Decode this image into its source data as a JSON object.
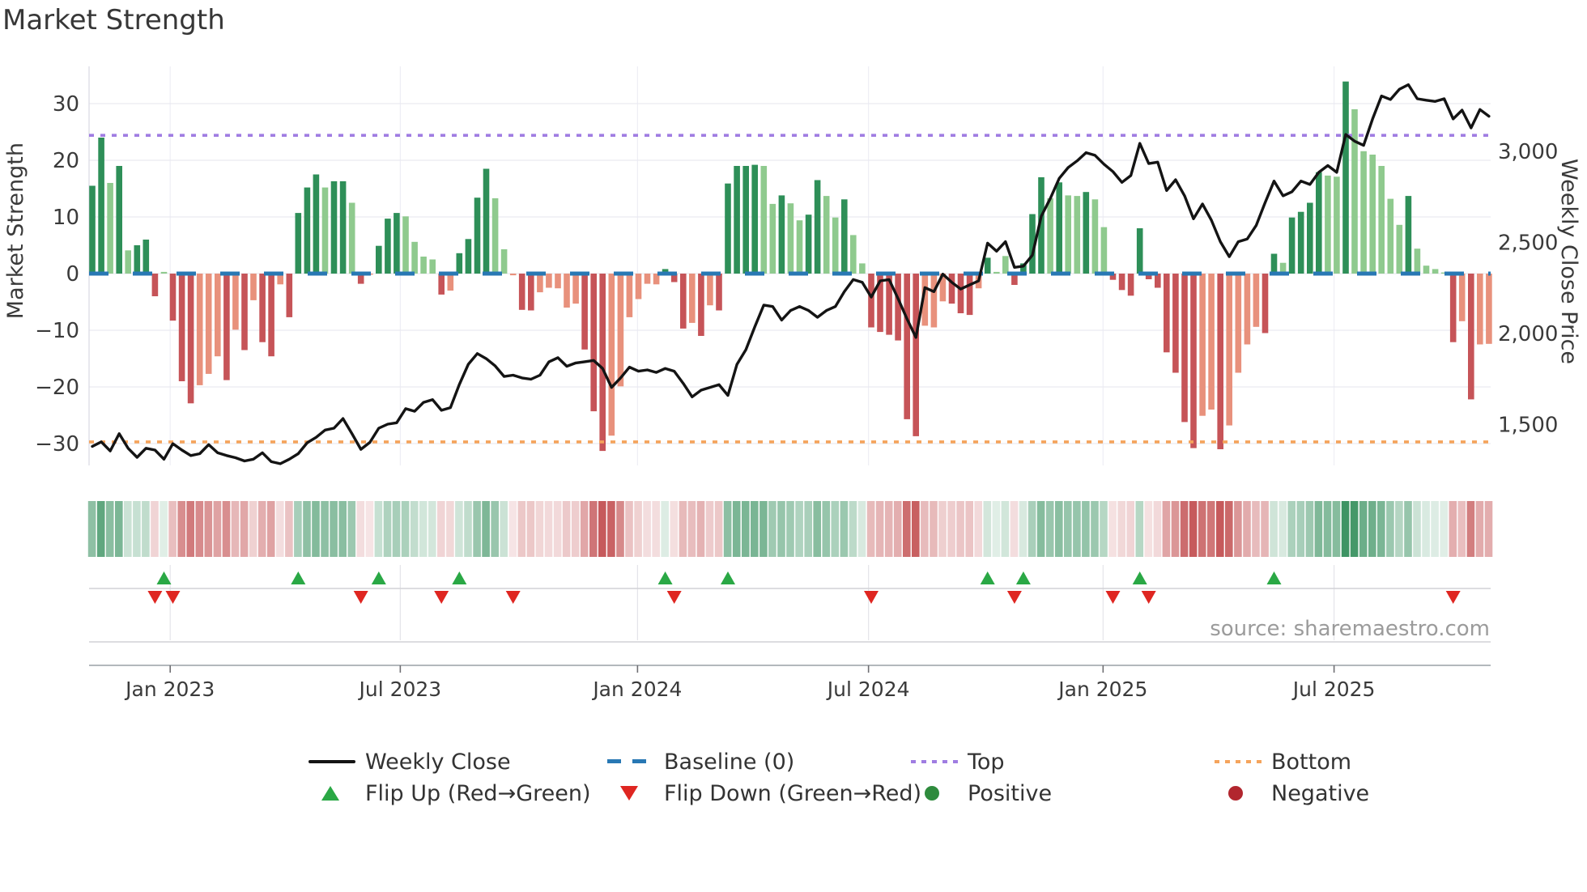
{
  "title": "Market Strength",
  "source_note": "source: sharemaestro.com",
  "chart_data": {
    "type": "bar",
    "title": "Market Strength",
    "subtitle": "",
    "left_axis": {
      "label": "Market Strength",
      "tick_values": [
        30,
        20,
        10,
        0,
        -10,
        -20,
        -30
      ],
      "tick_labels": [
        "30",
        "20",
        "10",
        "0",
        "−10",
        "−20",
        "−30"
      ],
      "ylim": [
        -33.9,
        36.6
      ],
      "grid": true
    },
    "right_axis": {
      "label": "Weekly Close Price",
      "tick_values": [
        3000,
        2500,
        2000,
        1500
      ],
      "tick_labels": [
        "3,000",
        "2,500",
        "2,000",
        "1,500"
      ],
      "ylim": [
        1276,
        3467
      ]
    },
    "x_axis": {
      "tick_labels": [
        "Jan 2023",
        "Jul 2023",
        "Jan 2024",
        "Jul 2024",
        "Jan 2025",
        "Jul 2025"
      ],
      "tick_weeks": [
        8.7,
        34.4,
        60.9,
        86.7,
        112.9,
        138.7
      ]
    },
    "baseline_value": 0,
    "top_value": 24.4,
    "bottom_value": -29.7,
    "bars": {
      "values": [
        15.5,
        24,
        16,
        19,
        4.1,
        5,
        6,
        -4,
        0.3,
        -8.3,
        -19,
        -22.9,
        -19.7,
        -17.7,
        -14.6,
        -18.8,
        -9.9,
        -13.5,
        -4.7,
        -12.1,
        -14.6,
        -1.9,
        -7.7,
        10.7,
        15.2,
        17.5,
        15.2,
        16.3,
        16.3,
        12.5,
        -1.8,
        -0.2,
        4.9,
        9.7,
        10.7,
        10.1,
        5.6,
        3,
        2.5,
        -3.7,
        -3,
        3.6,
        6.1,
        13.4,
        18.5,
        13.3,
        4.3,
        -0.3,
        -6.4,
        -6.5,
        -3.3,
        -2.5,
        -2.6,
        -6,
        -5.3,
        -13.4,
        -24.3,
        -31.3,
        -28.6,
        -19.9,
        -7.7,
        -4.5,
        -1.8,
        -1.9,
        0.8,
        -1.5,
        -9.7,
        -8.7,
        -11,
        -5.6,
        -6.5,
        15.9,
        19,
        19,
        19.2,
        19,
        12.3,
        13.8,
        12.4,
        9.4,
        10.4,
        16.5,
        13.7,
        9.9,
        13.1,
        6.8,
        1.8,
        -9.5,
        -10.3,
        -10.8,
        -11.8,
        -25.7,
        -28.7,
        -9.2,
        -9.5,
        -4.9,
        -5.3,
        -7,
        -7.3,
        -2.6,
        2.8,
        0.3,
        3.1,
        -2,
        1.8,
        10.5,
        17,
        13.3,
        16.1,
        13.8,
        13.7,
        14.4,
        13.1,
        8.2,
        -1.1,
        -2.9,
        -3.9,
        8,
        -1,
        -2.5,
        -13.9,
        -17.5,
        -26.2,
        -30.8,
        -25.1,
        -24,
        -31,
        -26.8,
        -17.5,
        -12.5,
        -9.4,
        -10.5,
        3.5,
        1.9,
        9.9,
        10.9,
        12.5,
        17.9,
        17.3,
        17.1,
        33.9,
        29,
        21.6,
        21,
        19,
        13.2,
        8.6,
        13.7,
        4.4,
        1.4,
        0.8,
        0.2,
        -12.1,
        -8.4,
        -22.2,
        -12.5,
        -12.4
      ],
      "shades": [
        "dg",
        "dg",
        "lg",
        "dg",
        "lg",
        "dg",
        "dg",
        "dr",
        "lg",
        "dr",
        "dr",
        "dr",
        "sr",
        "sr",
        "sr",
        "dr",
        "sr",
        "dr",
        "sr",
        "dr",
        "dr",
        "sr",
        "dr",
        "dg",
        "dg",
        "dg",
        "lg",
        "dg",
        "dg",
        "lg",
        "dr",
        "sr",
        "dg",
        "dg",
        "dg",
        "lg",
        "lg",
        "lg",
        "lg",
        "dr",
        "sr",
        "dg",
        "dg",
        "dg",
        "dg",
        "lg",
        "lg",
        "sr",
        "dr",
        "dr",
        "sr",
        "sr",
        "sr",
        "sr",
        "sr",
        "dr",
        "dr",
        "dr",
        "sr",
        "sr",
        "sr",
        "sr",
        "sr",
        "sr",
        "dg",
        "dr",
        "dr",
        "sr",
        "dr",
        "sr",
        "dr",
        "dg",
        "dg",
        "dg",
        "dg",
        "lg",
        "lg",
        "dg",
        "lg",
        "lg",
        "dg",
        "dg",
        "lg",
        "lg",
        "dg",
        "lg",
        "lg",
        "dr",
        "dr",
        "dr",
        "dr",
        "dr",
        "dr",
        "sr",
        "sr",
        "sr",
        "dr",
        "dr",
        "dr",
        "sr",
        "dg",
        "lg",
        "lg",
        "dr",
        "dg",
        "dg",
        "dg",
        "lg",
        "dg",
        "lg",
        "lg",
        "dg",
        "lg",
        "lg",
        "dr",
        "dr",
        "dr",
        "dg",
        "dr",
        "dr",
        "dr",
        "dr",
        "dr",
        "dr",
        "sr",
        "sr",
        "dr",
        "sr",
        "sr",
        "sr",
        "sr",
        "dr",
        "dg",
        "lg",
        "dg",
        "dg",
        "dg",
        "dg",
        "lg",
        "lg",
        "dg",
        "lg",
        "lg",
        "lg",
        "lg",
        "lg",
        "lg",
        "dg",
        "lg",
        "lg",
        "lg",
        "lg",
        "dr",
        "sr",
        "dr",
        "sr",
        "sr"
      ]
    },
    "weekly_close": [
      1380,
      1405,
      1355,
      1450,
      1370,
      1320,
      1370,
      1360,
      1310,
      1395,
      1360,
      1330,
      1340,
      1390,
      1345,
      1330,
      1318,
      1300,
      1310,
      1345,
      1296,
      1285,
      1310,
      1340,
      1400,
      1430,
      1470,
      1480,
      1533,
      1450,
      1364,
      1402,
      1480,
      1502,
      1510,
      1587,
      1573,
      1622,
      1637,
      1578,
      1593,
      1720,
      1831,
      1890,
      1862,
      1822,
      1764,
      1771,
      1756,
      1749,
      1771,
      1844,
      1867,
      1820,
      1838,
      1845,
      1852,
      1808,
      1704,
      1756,
      1815,
      1793,
      1800,
      1786,
      1808,
      1793,
      1726,
      1652,
      1689,
      1704,
      1719,
      1660,
      1830,
      1911,
      2037,
      2156,
      2148,
      2074,
      2126,
      2148,
      2126,
      2089,
      2126,
      2148,
      2230,
      2296,
      2281,
      2200,
      2289,
      2296,
      2192,
      2080,
      1978,
      2252,
      2230,
      2326,
      2281,
      2244,
      2267,
      2289,
      2496,
      2452,
      2504,
      2363,
      2370,
      2430,
      2644,
      2741,
      2852,
      2911,
      2948,
      2993,
      2978,
      2930,
      2889,
      2830,
      2867,
      3044,
      2933,
      2941,
      2785,
      2844,
      2756,
      2630,
      2711,
      2622,
      2504,
      2422,
      2504,
      2519,
      2593,
      2719,
      2837,
      2756,
      2778,
      2837,
      2818,
      2885,
      2922,
      2885,
      3093,
      3056,
      3033,
      3178,
      3304,
      3285,
      3341,
      3366,
      3289,
      3281,
      3274,
      3289,
      3178,
      3226,
      3129,
      3230,
      3193
    ],
    "flip_up_weeks": [
      8,
      23,
      32,
      41,
      64,
      71,
      100,
      104,
      117,
      132
    ],
    "flip_down_weeks": [
      7,
      9,
      30,
      39,
      47,
      65,
      87,
      103,
      114,
      118,
      152
    ],
    "heatmap": {
      "note": "weekly strength strip, green positive / red negative, intensity = |value|"
    },
    "legend": [
      {
        "label": "Weekly Close"
      },
      {
        "label": "Baseline (0)"
      },
      {
        "label": "Top"
      },
      {
        "label": "Bottom"
      },
      {
        "label": "Flip Up (Red→Green)"
      },
      {
        "label": "Flip Down (Green→Red)"
      },
      {
        "label": "Positive"
      },
      {
        "label": "Negative"
      }
    ],
    "colors": {
      "dg": "#2e8f58",
      "lg": "#8fca8e",
      "sr": "#e8917c",
      "dr": "#c65458",
      "baseline": "#2878b4",
      "top": "#a07de2",
      "bottom": "#f5a45c",
      "close": "#141414",
      "flip_up": "#2aa845",
      "flip_down": "#df2621",
      "positive_dot": "#2e8b3d",
      "negative_dot": "#b2262e",
      "heat_green": "46,139,87",
      "heat_red": "193,76,78"
    }
  }
}
